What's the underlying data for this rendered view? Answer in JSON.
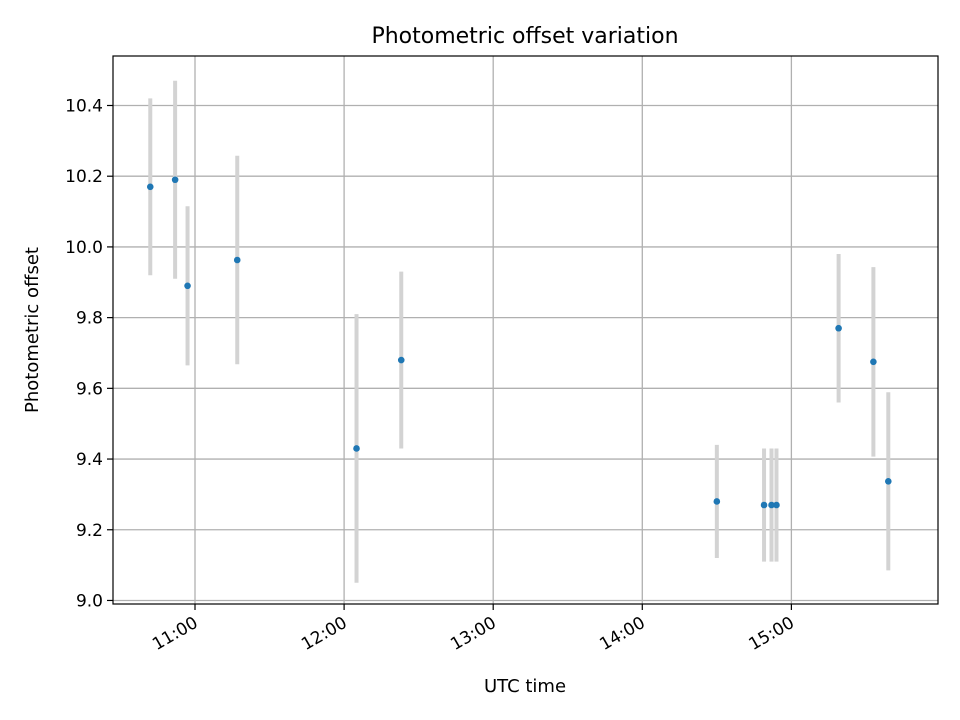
{
  "chart_data": {
    "type": "scatter",
    "title": "Photometric offset variation",
    "xlabel": "UTC time",
    "ylabel": "Photometric offset",
    "x_unit": "time",
    "xlim": [
      "10:27",
      "15:59"
    ],
    "ylim": [
      8.99,
      10.54
    ],
    "x_ticks": [
      "11:00",
      "12:00",
      "13:00",
      "14:00",
      "15:00"
    ],
    "y_ticks": [
      "9.0",
      "9.2",
      "9.4",
      "9.6",
      "9.8",
      "10.0",
      "10.2",
      "10.4"
    ],
    "grid": true,
    "colors": {
      "points": "#1f77b4",
      "errorbars": "#d3d3d3",
      "grid": "#b0b0b0"
    },
    "series": [
      {
        "x": [
          "10:42",
          "10:52",
          "10:57",
          "11:17",
          "12:05",
          "12:23",
          "14:30",
          "14:49",
          "14:52",
          "14:54",
          "15:19",
          "15:33",
          "15:39"
        ],
        "y": [
          10.17,
          10.19,
          9.89,
          9.963,
          9.43,
          9.68,
          9.28,
          9.27,
          9.27,
          9.27,
          9.77,
          9.675,
          9.337
        ],
        "yerr": [
          0.25,
          0.28,
          0.225,
          0.295,
          0.38,
          0.25,
          0.16,
          0.16,
          0.16,
          0.16,
          0.21,
          0.268,
          0.252
        ]
      }
    ]
  }
}
